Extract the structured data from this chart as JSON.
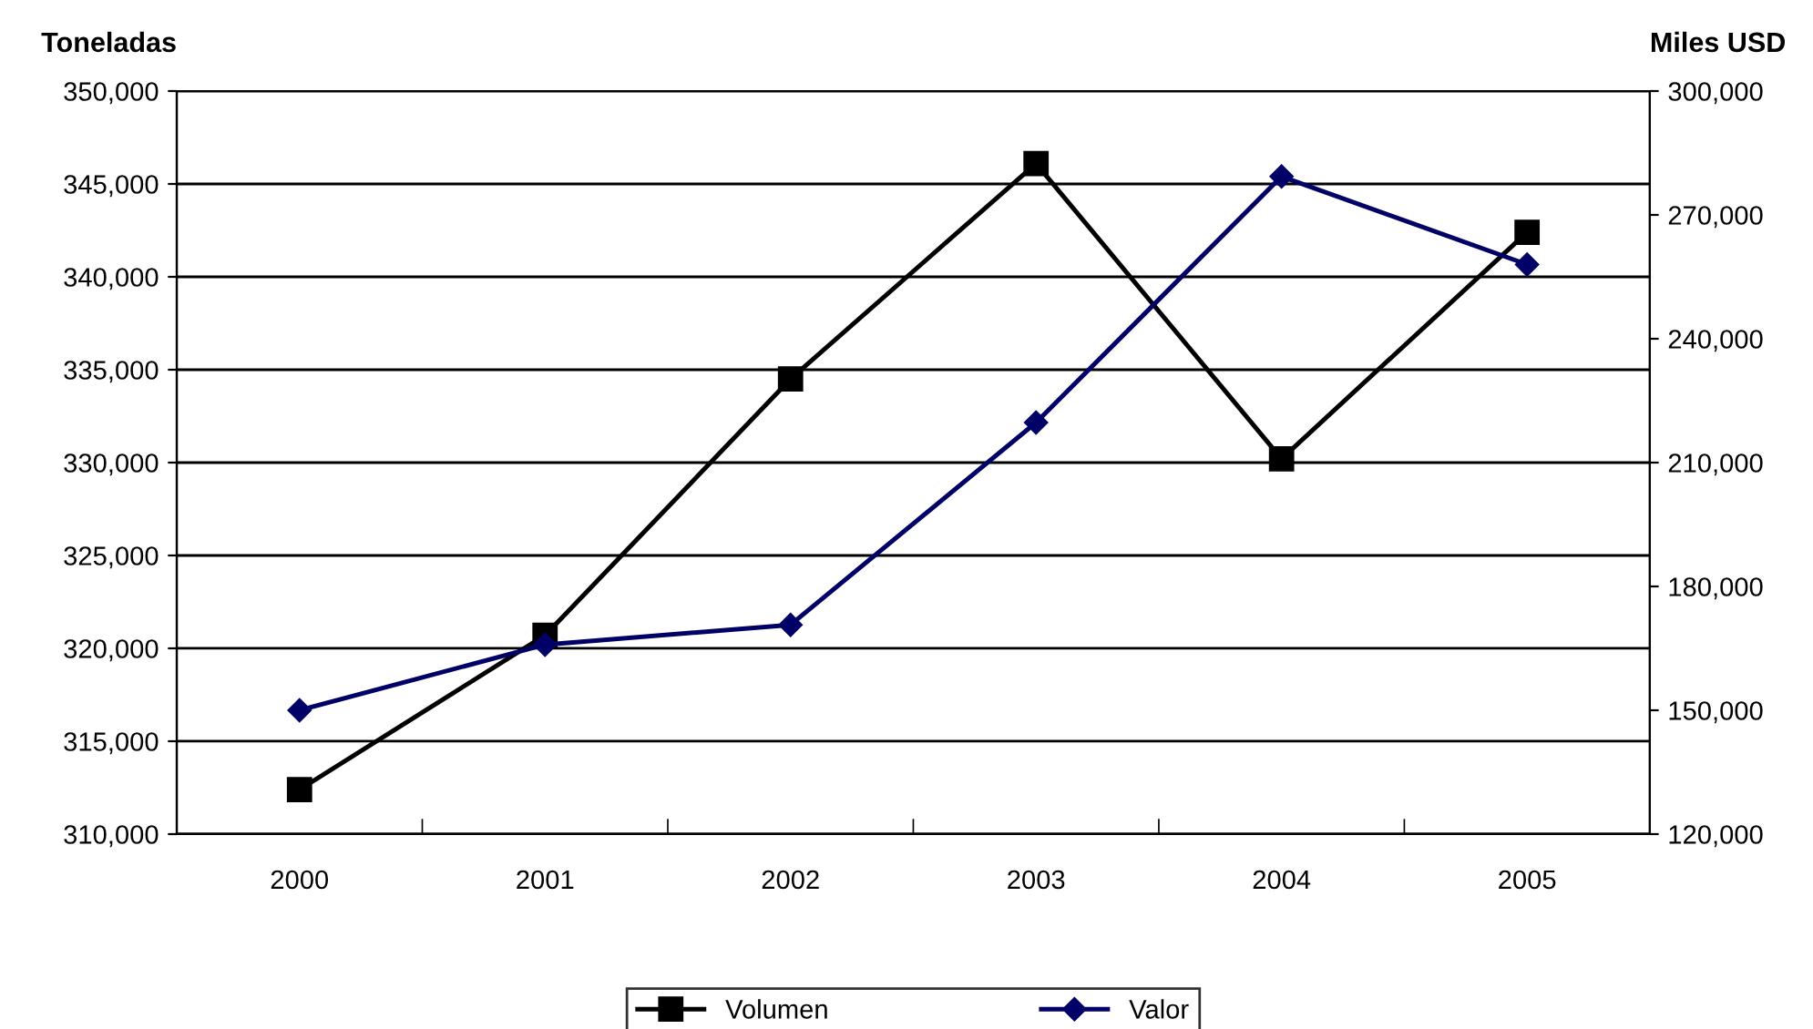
{
  "chart_data": {
    "type": "line",
    "ylabel": "Toneladas",
    "y2label": "Miles USD",
    "categories": [
      "2000",
      "2001",
      "2002",
      "2003",
      "2004",
      "2005"
    ],
    "series": [
      {
        "name": "Volumen",
        "color": "#000000",
        "marker": "square",
        "values": [
          312400,
          320700,
          334500,
          346100,
          330200,
          342400
        ]
      },
      {
        "name": "Valor",
        "color": "#000066",
        "marker": "diamond",
        "axis": "y2",
        "values": [
          150000,
          165900,
          170700,
          219700,
          279300,
          258000
        ]
      }
    ],
    "ylim": [
      310000,
      350000
    ],
    "yticks": [
      {
        "value": 310000,
        "label": "310,000"
      },
      {
        "value": 315000,
        "label": "315,000"
      },
      {
        "value": 320000,
        "label": "320,000"
      },
      {
        "value": 325000,
        "label": "325,000"
      },
      {
        "value": 330000,
        "label": "330,000"
      },
      {
        "value": 335000,
        "label": "335,000"
      },
      {
        "value": 340000,
        "label": "340,000"
      },
      {
        "value": 345000,
        "label": "345,000"
      },
      {
        "value": 350000,
        "label": "350,000"
      }
    ],
    "y2lim": [
      120000,
      300000
    ],
    "y2ticks": [
      {
        "value": 120000,
        "label": "120,000"
      },
      {
        "value": 150000,
        "label": "150,000"
      },
      {
        "value": 180000,
        "label": "180,000"
      },
      {
        "value": 210000,
        "label": "210,000"
      },
      {
        "value": 240000,
        "label": "240,000"
      },
      {
        "value": 270000,
        "label": "270,000"
      },
      {
        "value": 300000,
        "label": "300,000"
      }
    ],
    "grid": "y",
    "legend": "bottom",
    "line_style": "solid"
  }
}
